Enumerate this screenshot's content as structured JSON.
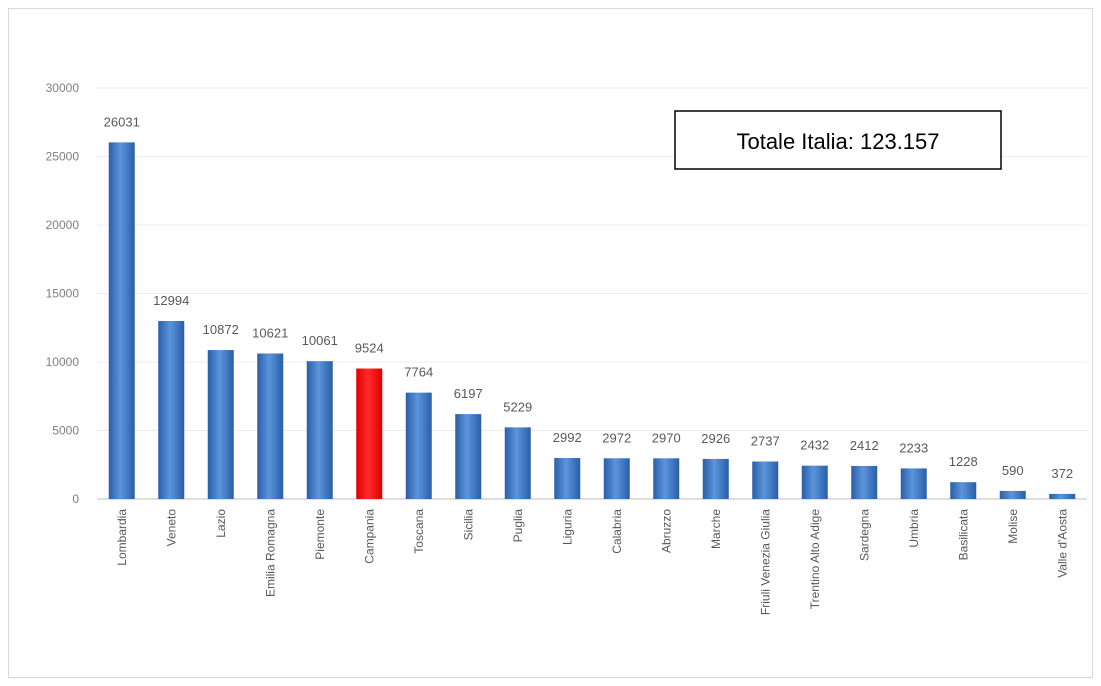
{
  "chart_data": {
    "type": "bar",
    "categories": [
      "Lombardia",
      "Veneto",
      "Lazio",
      "Emilia Romagna",
      "Piemonte",
      "Campania",
      "Toscana",
      "Sicilia",
      "Puglia",
      "Liguria",
      "Calabria",
      "Abruzzo",
      "Marche",
      "Friuli Venezia Giulia",
      "Trentino Alto Adige",
      "Sardegna",
      "Umbria",
      "Basilicata",
      "Molise",
      "Valle d'Aosta"
    ],
    "values": [
      26031,
      12994,
      10872,
      10621,
      10061,
      9524,
      7764,
      6197,
      5229,
      2992,
      2972,
      2970,
      2926,
      2737,
      2432,
      2412,
      2233,
      1228,
      590,
      372
    ],
    "data_labels": [
      "26031",
      "12994",
      "10872",
      "10621",
      "10061",
      "9524",
      "7764",
      "6197",
      "5229",
      "2992",
      "2972",
      "2970",
      "2926",
      "2737",
      "2432",
      "2412",
      "2233",
      "1228",
      "590",
      "372"
    ],
    "yticks": [
      "0",
      "5000",
      "10000",
      "15000",
      "20000",
      "25000",
      "30000"
    ],
    "ylim": [
      0,
      30000
    ],
    "grid": true,
    "highlight_category": "Campania",
    "colors": {
      "bar": "#3c78c8",
      "highlight": "#ff0000",
      "grid": "#ececec"
    },
    "annotation": "Totale Italia: 123.157"
  }
}
